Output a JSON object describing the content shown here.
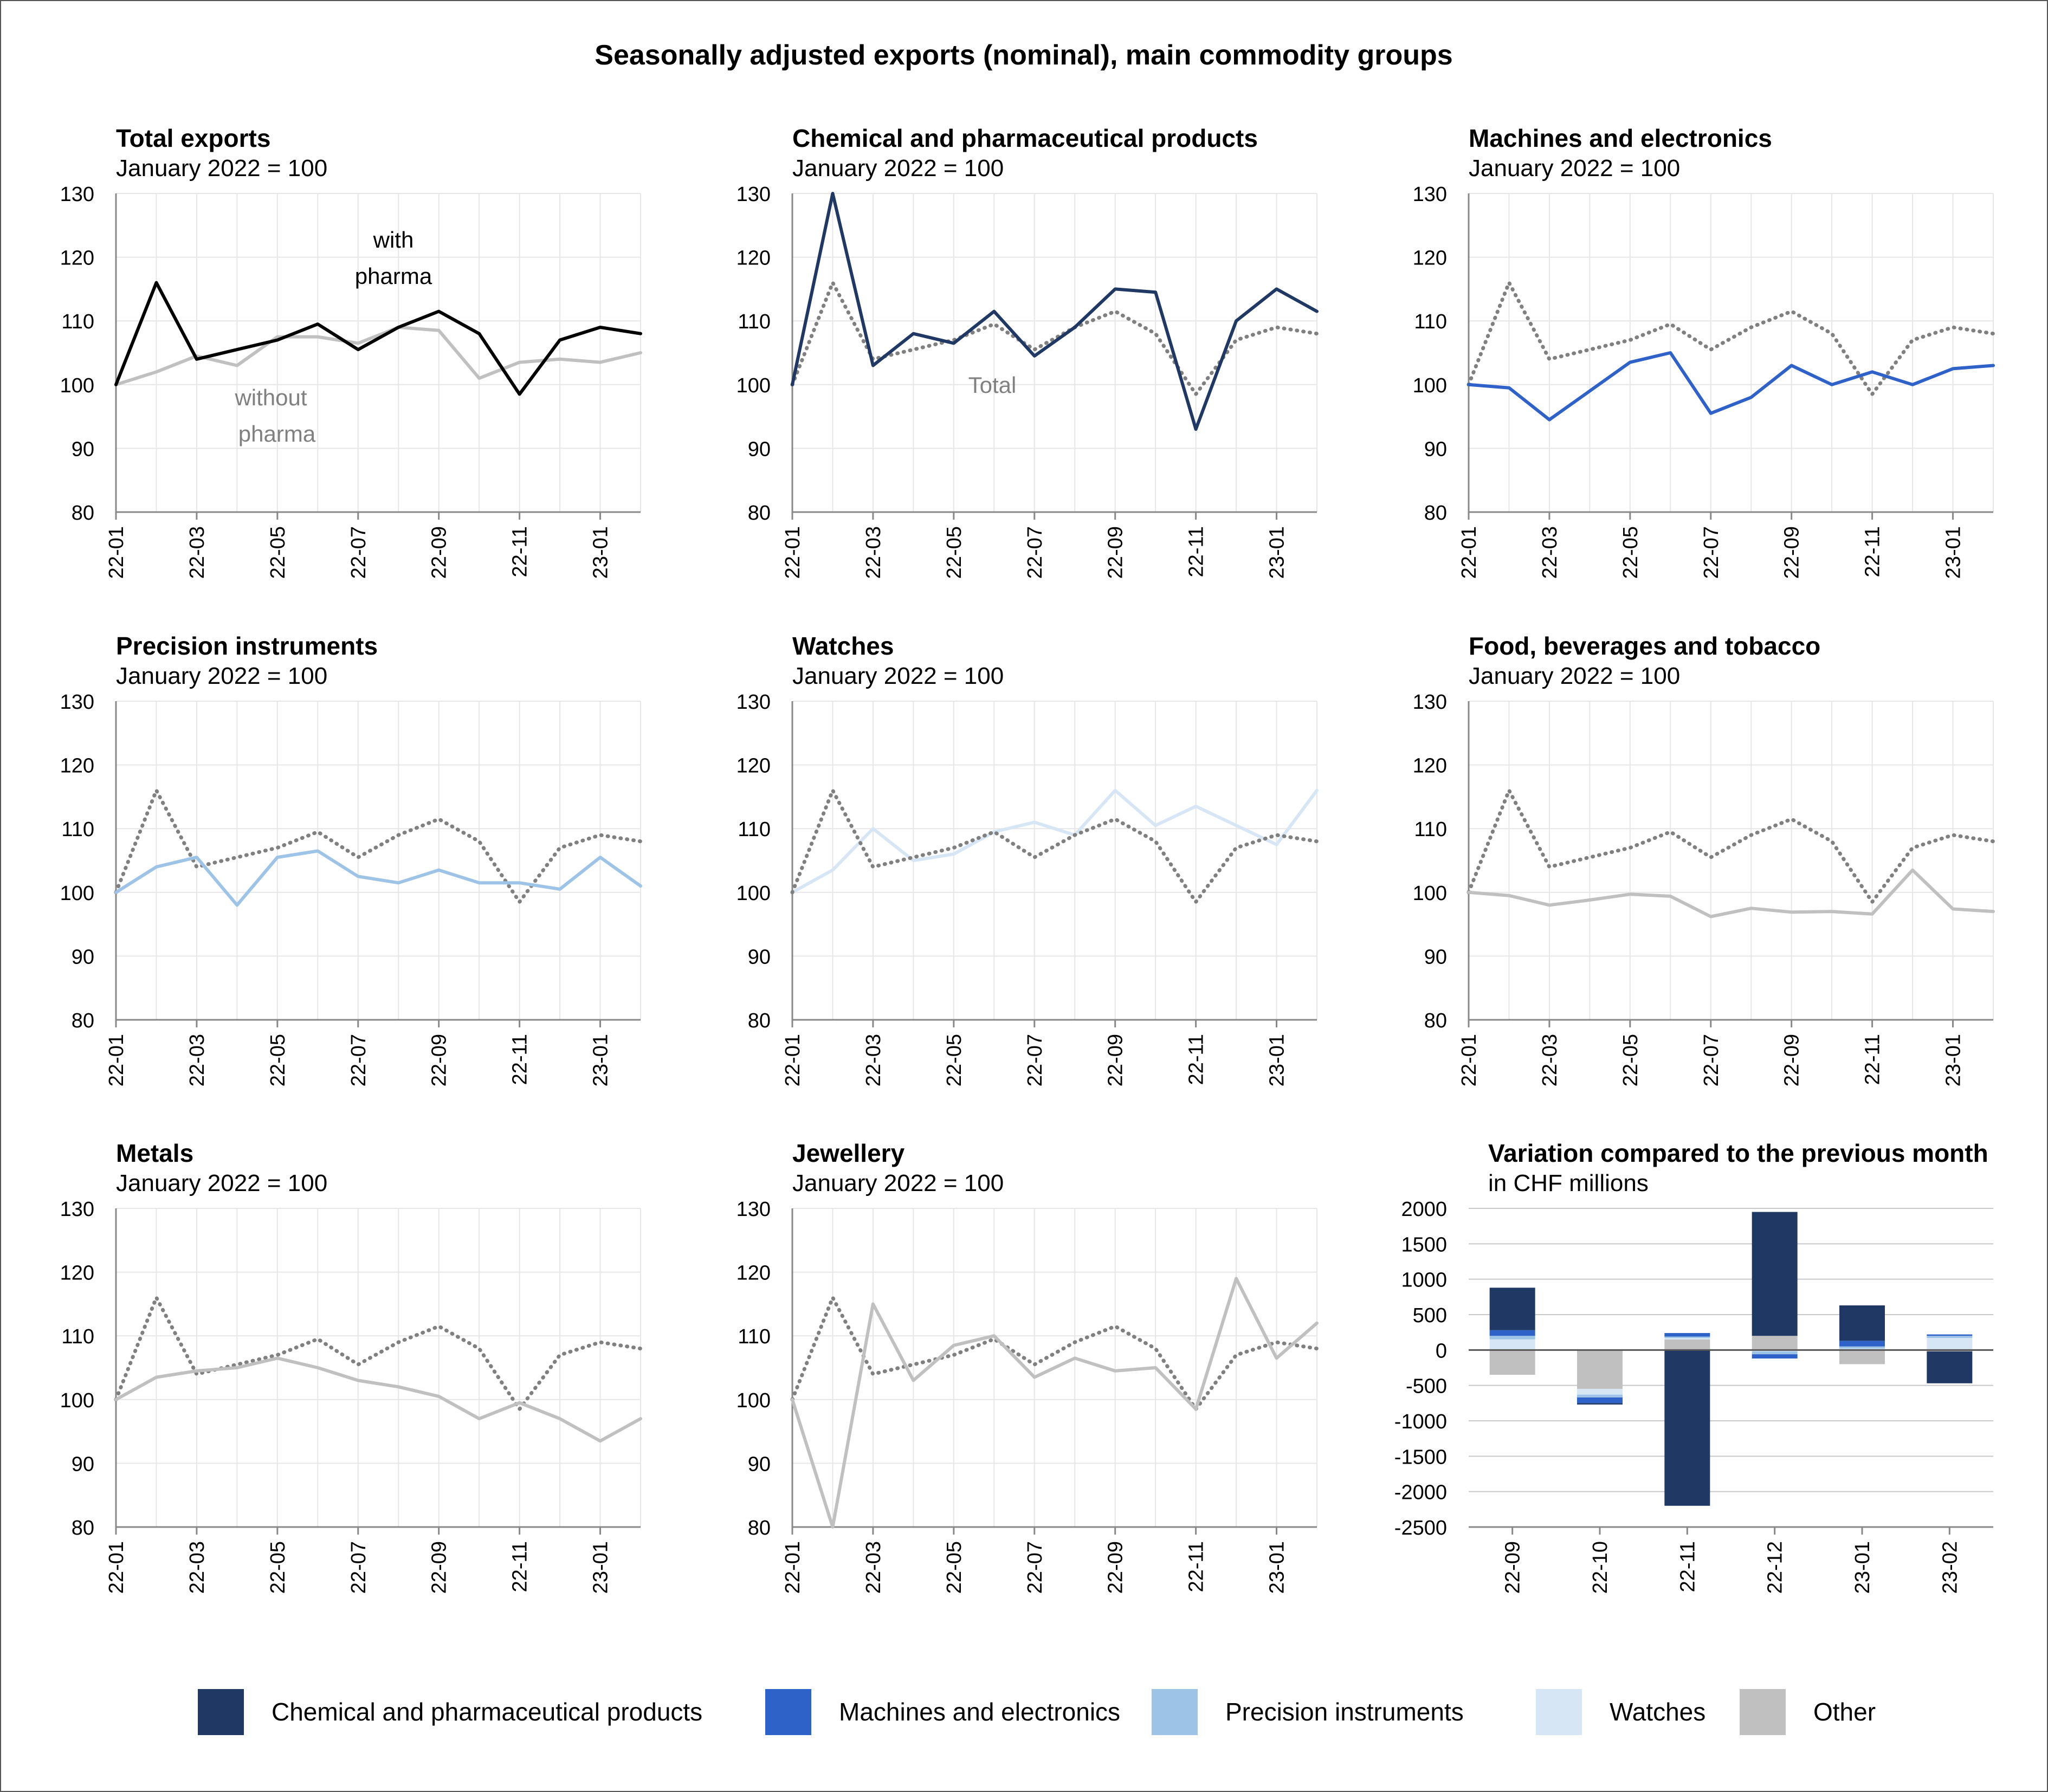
{
  "page_title": "Seasonally adjusted exports (nominal), main commodity groups",
  "colors": {
    "total": "#000000",
    "without_pharma": "#c0c0c0",
    "total_dotted": "#808080",
    "chemical": "#1f3864",
    "machines": "#2f62c8",
    "precision": "#9dc3e6",
    "watches": "#d6e6f5",
    "other": "#c0c0c0",
    "grid": "#e6e6e6",
    "axis": "#888888",
    "annotation": "#808080"
  },
  "legend": [
    {
      "label": "Chemical and pharmaceutical products",
      "color": "#1f3864"
    },
    {
      "label": "Machines and electronics",
      "color": "#2f62c8"
    },
    {
      "label": "Precision instruments",
      "color": "#9dc3e6"
    },
    {
      "label": "Watches",
      "color": "#d6e6f5"
    },
    {
      "label": "Other",
      "color": "#c0c0c0"
    }
  ],
  "chart_data": [
    {
      "type": "line",
      "title": "Total exports",
      "subtitle": "January 2022 = 100",
      "x": [
        "22-01",
        "22-02",
        "22-03",
        "22-04",
        "22-05",
        "22-06",
        "22-07",
        "22-08",
        "22-09",
        "22-10",
        "22-11",
        "22-12",
        "23-01",
        "23-02"
      ],
      "xticks": [
        "22-01",
        "22-03",
        "22-05",
        "22-07",
        "22-09",
        "22-11",
        "23-01"
      ],
      "ylim": [
        80,
        130
      ],
      "yticks": [
        80,
        90,
        100,
        110,
        120,
        130
      ],
      "series": [
        {
          "name": "with pharma",
          "values": [
            100,
            116,
            104,
            105.5,
            107,
            109.5,
            105.5,
            109,
            111.5,
            108,
            98.5,
            107,
            109,
            108
          ]
        },
        {
          "name": "without pharma",
          "values": [
            100,
            102,
            104.5,
            103,
            107.5,
            107.5,
            106.5,
            109,
            108.5,
            101,
            103.5,
            104,
            103.5,
            105
          ]
        }
      ],
      "annotations": [
        {
          "text": "with",
          "series": "with pharma"
        },
        {
          "text": "pharma",
          "series": "with pharma"
        },
        {
          "text": "without",
          "series": "without pharma"
        },
        {
          "text": "pharma",
          "series": "without pharma"
        }
      ]
    },
    {
      "type": "line",
      "title": "Chemical and pharmaceutical products",
      "subtitle": "January 2022 = 100",
      "x": [
        "22-01",
        "22-02",
        "22-03",
        "22-04",
        "22-05",
        "22-06",
        "22-07",
        "22-08",
        "22-09",
        "22-10",
        "22-11",
        "22-12",
        "23-01",
        "23-02"
      ],
      "xticks": [
        "22-01",
        "22-03",
        "22-05",
        "22-07",
        "22-09",
        "22-11",
        "23-01"
      ],
      "ylim": [
        80,
        130
      ],
      "yticks": [
        80,
        90,
        100,
        110,
        120,
        130
      ],
      "series": [
        {
          "name": "Chemical and pharmaceutical products",
          "values": [
            100,
            130,
            103,
            108,
            106.5,
            111.5,
            104.5,
            109,
            115,
            114.5,
            93,
            110,
            115,
            111.5
          ]
        },
        {
          "name": "Total",
          "values": [
            100,
            116,
            104,
            105.5,
            107,
            109.5,
            105.5,
            109,
            111.5,
            108,
            98.5,
            107,
            109,
            108
          ]
        }
      ],
      "annotations": [
        {
          "text": "Total",
          "series": "Total"
        }
      ]
    },
    {
      "type": "line",
      "title": "Machines and electronics",
      "subtitle": "January 2022 = 100",
      "x": [
        "22-01",
        "22-02",
        "22-03",
        "22-04",
        "22-05",
        "22-06",
        "22-07",
        "22-08",
        "22-09",
        "22-10",
        "22-11",
        "22-12",
        "23-01",
        "23-02"
      ],
      "xticks": [
        "22-01",
        "22-03",
        "22-05",
        "22-07",
        "22-09",
        "22-11",
        "23-01"
      ],
      "ylim": [
        80,
        130
      ],
      "yticks": [
        80,
        90,
        100,
        110,
        120,
        130
      ],
      "series": [
        {
          "name": "Machines and electronics",
          "values": [
            100,
            99.5,
            94.5,
            99,
            103.5,
            105,
            95.5,
            98,
            103,
            100,
            102,
            100,
            102.5,
            103
          ]
        },
        {
          "name": "Total",
          "values": [
            100,
            116,
            104,
            105.5,
            107,
            109.5,
            105.5,
            109,
            111.5,
            108,
            98.5,
            107,
            109,
            108
          ]
        }
      ]
    },
    {
      "type": "line",
      "title": "Precision instruments",
      "subtitle": "January 2022 = 100",
      "x": [
        "22-01",
        "22-02",
        "22-03",
        "22-04",
        "22-05",
        "22-06",
        "22-07",
        "22-08",
        "22-09",
        "22-10",
        "22-11",
        "22-12",
        "23-01",
        "23-02"
      ],
      "xticks": [
        "22-01",
        "22-03",
        "22-05",
        "22-07",
        "22-09",
        "22-11",
        "23-01"
      ],
      "ylim": [
        80,
        130
      ],
      "yticks": [
        80,
        90,
        100,
        110,
        120,
        130
      ],
      "series": [
        {
          "name": "Precision instruments",
          "values": [
            100,
            104,
            105.5,
            98,
            105.5,
            106.5,
            102.5,
            101.5,
            103.5,
            101.5,
            101.5,
            100.5,
            105.5,
            101
          ]
        },
        {
          "name": "Total",
          "values": [
            100,
            116,
            104,
            105.5,
            107,
            109.5,
            105.5,
            109,
            111.5,
            108,
            98.5,
            107,
            109,
            108
          ]
        }
      ]
    },
    {
      "type": "line",
      "title": "Watches",
      "subtitle": "January 2022 = 100",
      "x": [
        "22-01",
        "22-02",
        "22-03",
        "22-04",
        "22-05",
        "22-06",
        "22-07",
        "22-08",
        "22-09",
        "22-10",
        "22-11",
        "22-12",
        "23-01",
        "23-02"
      ],
      "xticks": [
        "22-01",
        "22-03",
        "22-05",
        "22-07",
        "22-09",
        "22-11",
        "23-01"
      ],
      "ylim": [
        80,
        130
      ],
      "yticks": [
        80,
        90,
        100,
        110,
        120,
        130
      ],
      "series": [
        {
          "name": "Watches",
          "values": [
            100,
            103.5,
            110,
            105,
            106,
            109.5,
            111,
            109,
            116,
            110.5,
            113.5,
            110.5,
            107.5,
            116
          ]
        },
        {
          "name": "Total",
          "values": [
            100,
            116,
            104,
            105.5,
            107,
            109.5,
            105.5,
            109,
            111.5,
            108,
            98.5,
            107,
            109,
            108
          ]
        }
      ]
    },
    {
      "type": "line",
      "title": "Food, beverages and tobacco",
      "subtitle": "January 2022 = 100",
      "x": [
        "22-01",
        "22-02",
        "22-03",
        "22-04",
        "22-05",
        "22-06",
        "22-07",
        "22-08",
        "22-09",
        "22-10",
        "22-11",
        "22-12",
        "23-01",
        "23-02"
      ],
      "xticks": [
        "22-01",
        "22-03",
        "22-05",
        "22-07",
        "22-09",
        "22-11",
        "23-01"
      ],
      "ylim": [
        80,
        130
      ],
      "yticks": [
        80,
        90,
        100,
        110,
        120,
        130
      ],
      "series": [
        {
          "name": "Food, beverages and tobacco",
          "values": [
            100,
            99.5,
            98,
            98.8,
            99.7,
            99.4,
            96.2,
            97.5,
            96.9,
            97,
            96.6,
            103.5,
            97.4,
            97
          ]
        },
        {
          "name": "Total",
          "values": [
            100,
            116,
            104,
            105.5,
            107,
            109.5,
            105.5,
            109,
            111.5,
            108,
            98.5,
            107,
            109,
            108
          ]
        }
      ]
    },
    {
      "type": "line",
      "title": "Metals",
      "subtitle": "January 2022 = 100",
      "x": [
        "22-01",
        "22-02",
        "22-03",
        "22-04",
        "22-05",
        "22-06",
        "22-07",
        "22-08",
        "22-09",
        "22-10",
        "22-11",
        "22-12",
        "23-01",
        "23-02"
      ],
      "xticks": [
        "22-01",
        "22-03",
        "22-05",
        "22-07",
        "22-09",
        "22-11",
        "23-01"
      ],
      "ylim": [
        80,
        130
      ],
      "yticks": [
        80,
        90,
        100,
        110,
        120,
        130
      ],
      "series": [
        {
          "name": "Metals",
          "values": [
            100,
            103.5,
            104.5,
            105,
            106.5,
            105,
            103,
            102,
            100.5,
            97,
            99.5,
            97,
            93.5,
            97
          ]
        },
        {
          "name": "Total",
          "values": [
            100,
            116,
            104,
            105.5,
            107,
            109.5,
            105.5,
            109,
            111.5,
            108,
            98.5,
            107,
            109,
            108
          ]
        }
      ]
    },
    {
      "type": "line",
      "title": "Jewellery",
      "subtitle": "January 2022 = 100",
      "x": [
        "22-01",
        "22-02",
        "22-03",
        "22-04",
        "22-05",
        "22-06",
        "22-07",
        "22-08",
        "22-09",
        "22-10",
        "22-11",
        "22-12",
        "23-01",
        "23-02"
      ],
      "xticks": [
        "22-01",
        "22-03",
        "22-05",
        "22-07",
        "22-09",
        "22-11",
        "23-01"
      ],
      "ylim": [
        80,
        130
      ],
      "yticks": [
        80,
        90,
        100,
        110,
        120,
        130
      ],
      "series": [
        {
          "name": "Jewellery",
          "values": [
            100,
            80,
            115,
            103,
            108.5,
            110,
            103.5,
            106.5,
            104.5,
            105,
            98.5,
            119,
            106.5,
            112
          ]
        },
        {
          "name": "Total",
          "values": [
            100,
            116,
            104,
            105.5,
            107,
            109.5,
            105.5,
            109,
            111.5,
            108,
            98.5,
            107,
            109,
            108
          ]
        }
      ]
    },
    {
      "type": "bar",
      "stacked": true,
      "title": "Variation compared to the previous month",
      "subtitle": "in CHF millions",
      "categories": [
        "22-09",
        "22-10",
        "22-11",
        "22-12",
        "23-01",
        "23-02"
      ],
      "ylim": [
        -2500,
        2000
      ],
      "yticks": [
        -2500,
        -2000,
        -1500,
        -1000,
        -500,
        0,
        500,
        1000,
        1500,
        2000
      ],
      "series": [
        {
          "name": "Other",
          "values": [
            -350,
            -550,
            150,
            200,
            -200,
            -20
          ]
        },
        {
          "name": "Watches",
          "values": [
            150,
            -80,
            20,
            -20,
            20,
            170
          ]
        },
        {
          "name": "Precision instruments",
          "values": [
            50,
            -40,
            20,
            -40,
            30,
            30
          ]
        },
        {
          "name": "Machines and electronics",
          "values": [
            80,
            -80,
            50,
            -60,
            80,
            20
          ]
        },
        {
          "name": "Chemical and pharmaceutical products",
          "values": [
            600,
            -20,
            -2200,
            1750,
            500,
            -450
          ]
        }
      ]
    }
  ]
}
